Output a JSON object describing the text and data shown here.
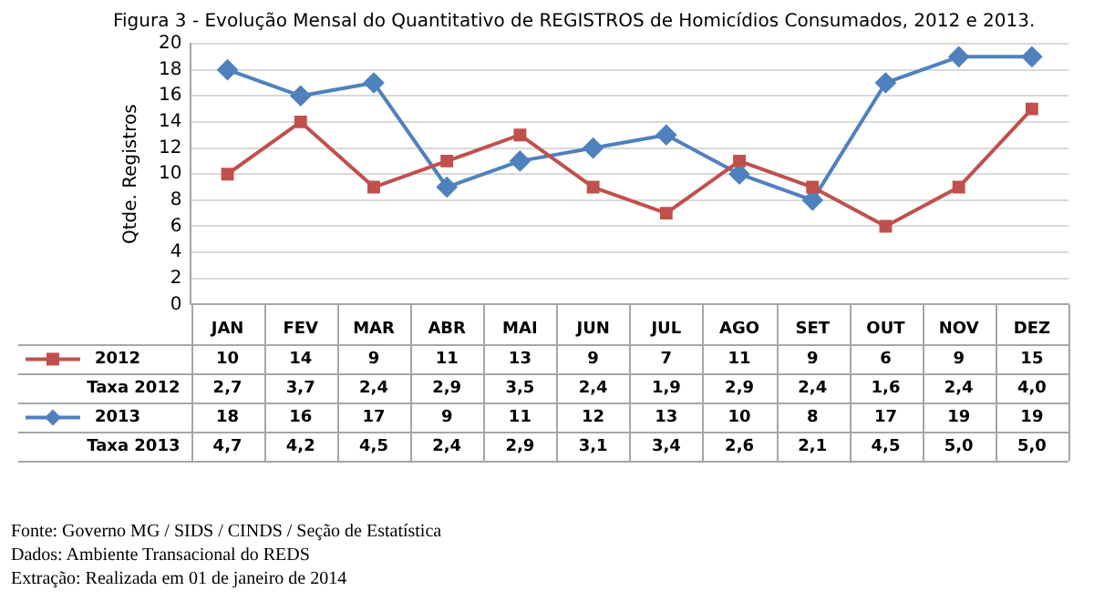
{
  "chart_data": {
    "type": "line",
    "title": "Figura 3 - Evolução Mensal do Quantitativo de REGISTROS de Homicídios Consumados, 2012 e 2013.",
    "ylabel": "Qtde. Registros",
    "categories": [
      "JAN",
      "FEV",
      "MAR",
      "ABR",
      "MAI",
      "JUN",
      "JUL",
      "AGO",
      "SET",
      "OUT",
      "NOV",
      "DEZ"
    ],
    "series": [
      {
        "name": "2012",
        "color": "#c0504d",
        "marker": "square",
        "values": [
          10,
          14,
          9,
          11,
          13,
          9,
          7,
          11,
          9,
          6,
          9,
          15
        ]
      },
      {
        "name": "2013",
        "color": "#4f81bd",
        "marker": "diamond",
        "values": [
          18,
          16,
          17,
          9,
          11,
          12,
          13,
          10,
          8,
          17,
          19,
          19
        ]
      }
    ],
    "ylim": [
      0,
      20
    ],
    "yticks": [
      0,
      2,
      4,
      6,
      8,
      10,
      12,
      14,
      16,
      18,
      20
    ],
    "grid": "y",
    "data_labels": true,
    "legend": "bottom left",
    "annotations": [
      "Taxa 2012",
      "2,7",
      "3,7",
      "2,4",
      "2,9",
      "3,5",
      "2,4",
      "1,9",
      "2,9",
      "2,4",
      "1,6",
      "2,4",
      "4,0",
      "Taxa 2013",
      "4,7",
      "4,2",
      "4,5",
      "2,4",
      "2,9",
      "3,1",
      "3,4",
      "2,6",
      "2,1",
      "4,5",
      "5,0",
      "5,0",
      "Fonte: Governo MG / SIDS / CINDS / Seção de Estatística",
      "Dados: Ambiente Transacional do REDS",
      "Extração: Realizada em 01 de janeiro de 2014"
    ]
  }
}
